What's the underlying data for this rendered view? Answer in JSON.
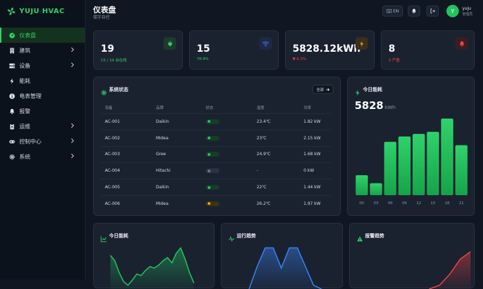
{
  "brand": {
    "name": "YUJU HVAC"
  },
  "nav": [
    {
      "label": "仪表盘",
      "icon": "dashboard-icon",
      "active": true,
      "chevron": false
    },
    {
      "label": "建筑",
      "icon": "building-icon",
      "active": false,
      "chevron": true
    },
    {
      "label": "设备",
      "icon": "server-icon",
      "active": false,
      "chevron": true
    },
    {
      "label": "能耗",
      "icon": "bolt-icon",
      "active": false,
      "chevron": false
    },
    {
      "label": "电表管理",
      "icon": "info-icon",
      "active": false,
      "chevron": false
    },
    {
      "label": "报警",
      "icon": "bell-icon",
      "active": false,
      "chevron": false
    },
    {
      "label": "运维",
      "icon": "clipboard-icon",
      "active": false,
      "chevron": true
    },
    {
      "label": "控制中心",
      "icon": "gamepad-icon",
      "active": false,
      "chevron": true
    },
    {
      "label": "系统",
      "icon": "gear-icon",
      "active": false,
      "chevron": true
    }
  ],
  "header": {
    "title": "仪表盘",
    "subtitle": "楼宇自控",
    "lang": "EN"
  },
  "user": {
    "initial": "Y",
    "name": "yuju",
    "role": "管理员"
  },
  "stats": [
    {
      "value": "19",
      "sub": "15 / 19 台在线",
      "icon": "plug-icon",
      "color": "#2fd26a",
      "iconBg": "#1d3a2a"
    },
    {
      "value": "15",
      "sub": "78.9%",
      "icon": "wifi-icon",
      "color": "#2fd26a",
      "iconBg": "#1d2a45"
    },
    {
      "value": "5828.12kWh",
      "sub": "▼ 6.3%",
      "icon": "bolt-icon",
      "color": "#ef4444",
      "iconBg": "#3b2e1c"
    },
    {
      "value": "8",
      "sub": "3 严重",
      "icon": "bell-icon",
      "color": "#ef4444",
      "iconBg": "#3a1d22"
    }
  ],
  "system": {
    "title": "系统状态",
    "all_label": "全部",
    "columns": [
      "设备",
      "品牌",
      "状态",
      "温度",
      "功率"
    ],
    "rows": [
      {
        "device": "AC-001",
        "brand": "Daikin",
        "status": "on",
        "temp": "23.4℃",
        "power": "1.82 kW"
      },
      {
        "device": "AC-002",
        "brand": "Midea",
        "status": "on",
        "temp": "23℃",
        "power": "2.15 kW"
      },
      {
        "device": "AC-003",
        "brand": "Gree",
        "status": "on",
        "temp": "24.9℃",
        "power": "1.68 kW"
      },
      {
        "device": "AC-004",
        "brand": "Hitachi",
        "status": "off",
        "temp": "-",
        "power": "0 kW"
      },
      {
        "device": "AC-005",
        "brand": "Daikin",
        "status": "on",
        "temp": "22℃",
        "power": "1.44 kW"
      },
      {
        "device": "AC-006",
        "brand": "Midea",
        "status": "warn",
        "temp": "26.2℃",
        "power": "1.97 kW"
      }
    ]
  },
  "today": {
    "title": "今日能耗",
    "value": "5828",
    "unit": "kWh"
  },
  "bottom": [
    {
      "title": "今日能耗",
      "icon": "line-chart-icon"
    },
    {
      "title": "运行趋势",
      "icon": "pulse-icon"
    },
    {
      "title": "报警趋势",
      "icon": "warning-icon"
    }
  ],
  "chart_data": [
    {
      "type": "bar",
      "categories": [
        "00",
        "03",
        "06",
        "09",
        "12",
        "15",
        "18",
        "21"
      ],
      "values": [
        30,
        18,
        80,
        88,
        92,
        95,
        115,
        75
      ],
      "ylim": [
        0,
        120
      ],
      "color": "#22c55e",
      "grid": false
    },
    {
      "type": "area",
      "x": [
        0,
        1,
        2,
        3,
        4,
        5,
        6,
        7,
        8,
        9,
        10,
        11,
        12,
        13,
        14,
        15,
        16,
        17,
        18,
        19
      ],
      "values": [
        45,
        38,
        22,
        10,
        5,
        12,
        20,
        18,
        25,
        30,
        28,
        32,
        38,
        42,
        35,
        48,
        55,
        40,
        22,
        8
      ],
      "ylim": [
        0,
        60
      ],
      "color": "#22c55e",
      "grid": false
    },
    {
      "type": "area",
      "x": [
        0,
        1,
        2,
        3,
        4,
        5,
        6,
        7,
        8,
        9
      ],
      "values": [
        0,
        30,
        55,
        55,
        28,
        55,
        55,
        30,
        5,
        0
      ],
      "ylim": [
        0,
        60
      ],
      "color": "#3b82f6",
      "grid": false
    },
    {
      "type": "area",
      "x": [
        0,
        1,
        2,
        3,
        4
      ],
      "values": [
        0,
        5,
        20,
        40,
        50
      ],
      "ylim": [
        0,
        60
      ],
      "color": "#ef4444",
      "grid": false
    }
  ]
}
